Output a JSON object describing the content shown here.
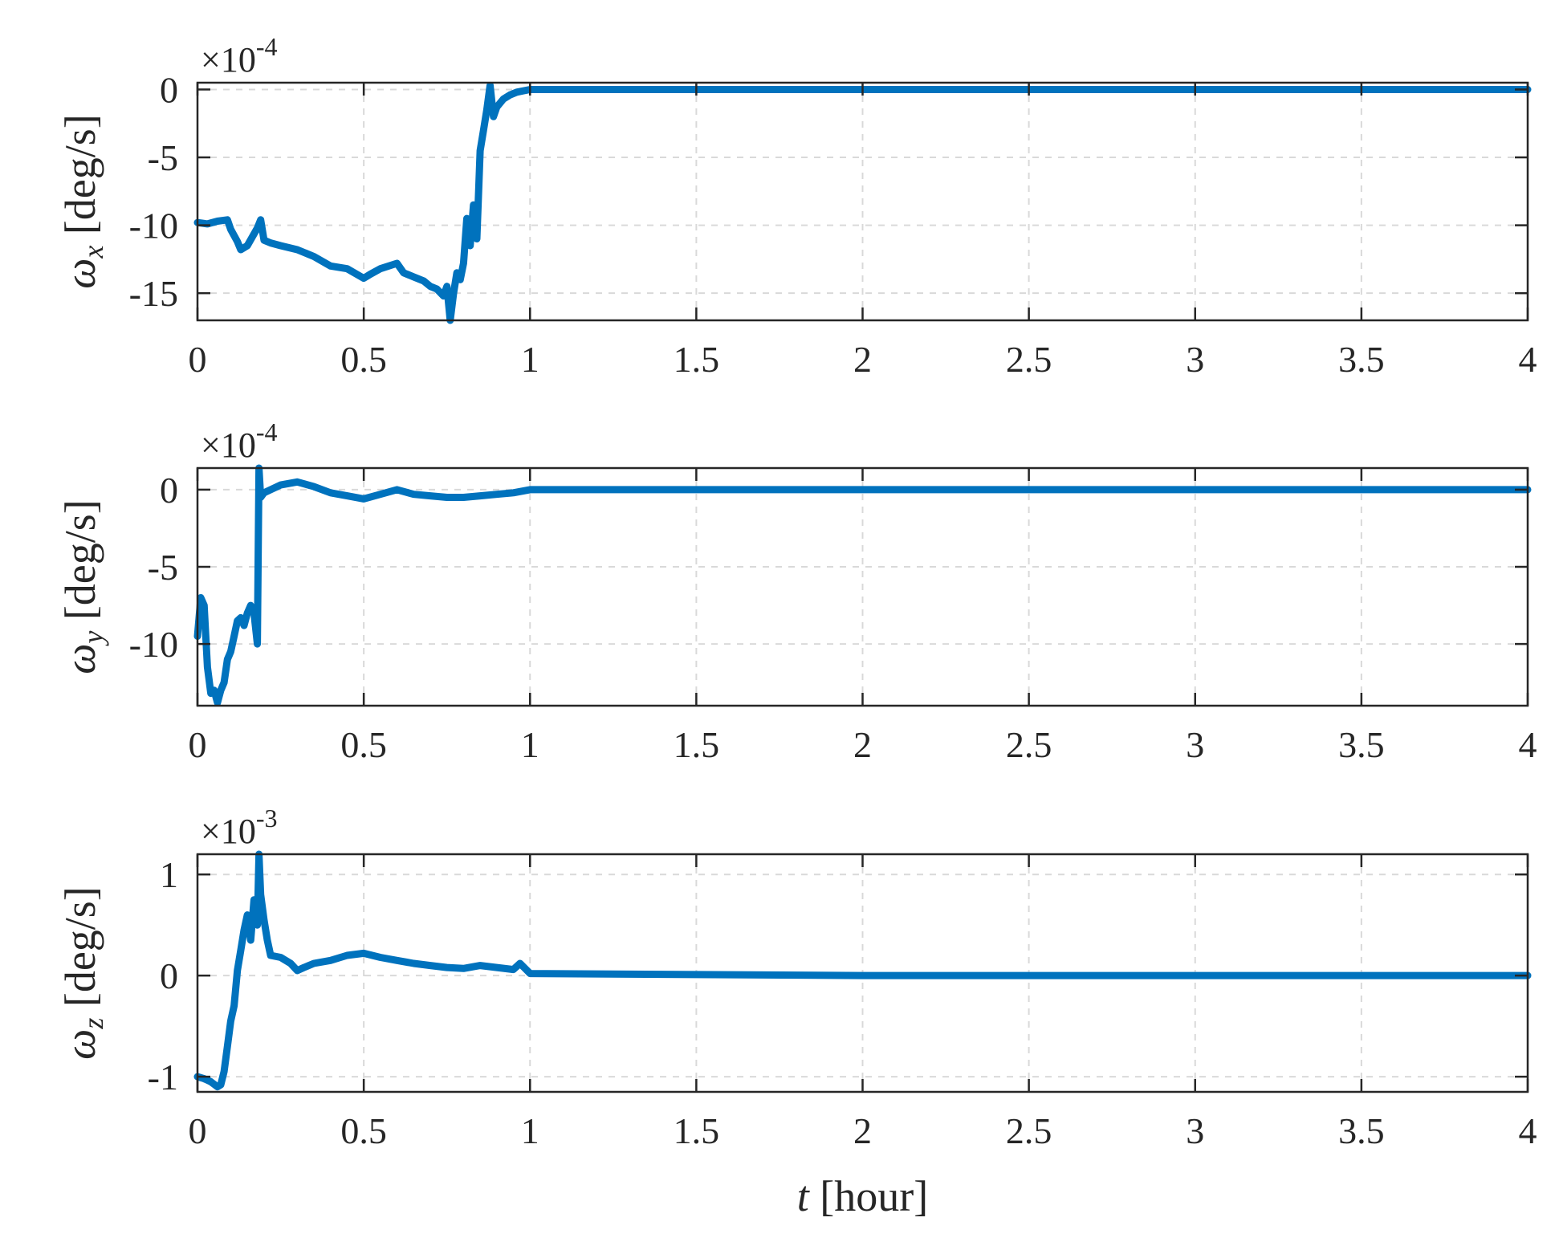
{
  "chart_data": [
    {
      "type": "line",
      "ylabel": {
        "symbol": "ω",
        "subscript": "x",
        "unit": "[deg/s]"
      },
      "xlabel": null,
      "exponent_label": {
        "base": "×10",
        "power": "-4"
      },
      "xlim": [
        0,
        4
      ],
      "ylim": [
        -17,
        0.5
      ],
      "xticks": [
        0,
        0.5,
        1,
        1.5,
        2,
        2.5,
        3,
        3.5,
        4
      ],
      "xtick_labels": [
        "0",
        "0.5",
        "1",
        "1.5",
        "2",
        "2.5",
        "3",
        "3.5",
        "4"
      ],
      "yticks": [
        0,
        -5,
        -10,
        -15
      ],
      "ytick_labels": [
        "0",
        "-5",
        "-10",
        "-15"
      ],
      "grid": true,
      "series": [
        {
          "color": "#0072BD",
          "x": [
            0,
            0.03,
            0.06,
            0.09,
            0.1,
            0.12,
            0.13,
            0.15,
            0.18,
            0.19,
            0.2,
            0.22,
            0.25,
            0.3,
            0.35,
            0.4,
            0.45,
            0.5,
            0.52,
            0.55,
            0.6,
            0.62,
            0.65,
            0.68,
            0.7,
            0.72,
            0.74,
            0.75,
            0.76,
            0.77,
            0.78,
            0.79,
            0.8,
            0.81,
            0.82,
            0.83,
            0.84,
            0.85,
            0.86,
            0.87,
            0.88,
            0.89,
            0.9,
            0.92,
            0.94,
            0.96,
            0.98,
            1.0,
            1.5,
            2.0,
            2.5,
            3.0,
            3.5,
            4.0
          ],
          "y": [
            -9.8,
            -9.9,
            -9.7,
            -9.6,
            -10.3,
            -11.2,
            -11.8,
            -11.5,
            -10.2,
            -9.6,
            -11.1,
            -11.3,
            -11.5,
            -11.8,
            -12.3,
            -13.0,
            -13.2,
            -13.9,
            -13.6,
            -13.2,
            -12.8,
            -13.5,
            -13.8,
            -14.1,
            -14.5,
            -14.7,
            -15.2,
            -14.5,
            -17.0,
            -15.0,
            -13.5,
            -14.0,
            -12.8,
            -9.5,
            -11.5,
            -8.5,
            -11.0,
            -4.5,
            -3.0,
            -1.5,
            0.3,
            -2.0,
            -1.3,
            -0.7,
            -0.4,
            -0.2,
            -0.1,
            0,
            0,
            0,
            0,
            0,
            0,
            0
          ]
        }
      ]
    },
    {
      "type": "line",
      "ylabel": {
        "symbol": "ω",
        "subscript": "y",
        "unit": "[deg/s]"
      },
      "xlabel": null,
      "exponent_label": {
        "base": "×10",
        "power": "-4"
      },
      "xlim": [
        0,
        4
      ],
      "ylim": [
        -14,
        1.4
      ],
      "xticks": [
        0,
        0.5,
        1,
        1.5,
        2,
        2.5,
        3,
        3.5,
        4
      ],
      "xtick_labels": [
        "0",
        "0.5",
        "1",
        "1.5",
        "2",
        "2.5",
        "3",
        "3.5",
        "4"
      ],
      "yticks": [
        0,
        -5,
        -10
      ],
      "ytick_labels": [
        "0",
        "-5",
        "-10"
      ],
      "grid": true,
      "series": [
        {
          "color": "#0072BD",
          "x": [
            0,
            0.01,
            0.02,
            0.03,
            0.04,
            0.05,
            0.06,
            0.07,
            0.08,
            0.09,
            0.1,
            0.11,
            0.12,
            0.13,
            0.14,
            0.15,
            0.16,
            0.17,
            0.18,
            0.185,
            0.19,
            0.2,
            0.25,
            0.3,
            0.35,
            0.4,
            0.45,
            0.5,
            0.55,
            0.6,
            0.65,
            0.7,
            0.75,
            0.8,
            0.85,
            0.9,
            0.95,
            1.0,
            1.5,
            2.0,
            2.5,
            3.0,
            3.5,
            4.0
          ],
          "y": [
            -9.5,
            -7.0,
            -7.5,
            -11.5,
            -13.2,
            -13.0,
            -13.8,
            -13.0,
            -12.5,
            -11.0,
            -10.5,
            -9.5,
            -8.5,
            -8.3,
            -8.8,
            -8.0,
            -7.5,
            -8.0,
            -10.0,
            1.4,
            -0.5,
            -0.2,
            0.3,
            0.5,
            0.2,
            -0.2,
            -0.4,
            -0.6,
            -0.3,
            0.0,
            -0.3,
            -0.4,
            -0.5,
            -0.5,
            -0.4,
            -0.3,
            -0.2,
            0,
            0,
            0,
            0,
            0,
            0,
            0
          ]
        }
      ]
    },
    {
      "type": "line",
      "ylabel": {
        "symbol": "ω",
        "subscript": "z",
        "unit": "[deg/s]"
      },
      "xlabel": {
        "symbol": "t",
        "unit": "[hour]"
      },
      "exponent_label": {
        "base": "×10",
        "power": "-3"
      },
      "xlim": [
        0,
        4
      ],
      "ylim": [
        -1.15,
        1.2
      ],
      "xticks": [
        0,
        0.5,
        1,
        1.5,
        2,
        2.5,
        3,
        3.5,
        4
      ],
      "xtick_labels": [
        "0",
        "0.5",
        "1",
        "1.5",
        "2",
        "2.5",
        "3",
        "3.5",
        "4"
      ],
      "yticks": [
        1,
        0,
        -1
      ],
      "ytick_labels": [
        "1",
        "0",
        "-1"
      ],
      "grid": true,
      "series": [
        {
          "color": "#0072BD",
          "x": [
            0,
            0.02,
            0.04,
            0.06,
            0.07,
            0.08,
            0.09,
            0.1,
            0.11,
            0.12,
            0.13,
            0.14,
            0.15,
            0.16,
            0.17,
            0.18,
            0.185,
            0.19,
            0.2,
            0.21,
            0.22,
            0.25,
            0.28,
            0.3,
            0.32,
            0.35,
            0.4,
            0.45,
            0.5,
            0.55,
            0.6,
            0.65,
            0.7,
            0.75,
            0.8,
            0.85,
            0.9,
            0.95,
            0.97,
            1.0,
            1.5,
            2.0,
            2.5,
            3.0,
            3.5,
            4.0
          ],
          "y": [
            -1.0,
            -1.02,
            -1.05,
            -1.1,
            -1.08,
            -0.95,
            -0.7,
            -0.45,
            -0.3,
            0.05,
            0.25,
            0.45,
            0.6,
            0.35,
            0.75,
            0.5,
            1.2,
            0.8,
            0.55,
            0.35,
            0.2,
            0.18,
            0.12,
            0.05,
            0.08,
            0.12,
            0.15,
            0.2,
            0.22,
            0.18,
            0.15,
            0.12,
            0.1,
            0.08,
            0.07,
            0.1,
            0.08,
            0.06,
            0.12,
            0.02,
            0.01,
            0,
            0,
            0,
            0,
            0
          ]
        }
      ]
    }
  ]
}
